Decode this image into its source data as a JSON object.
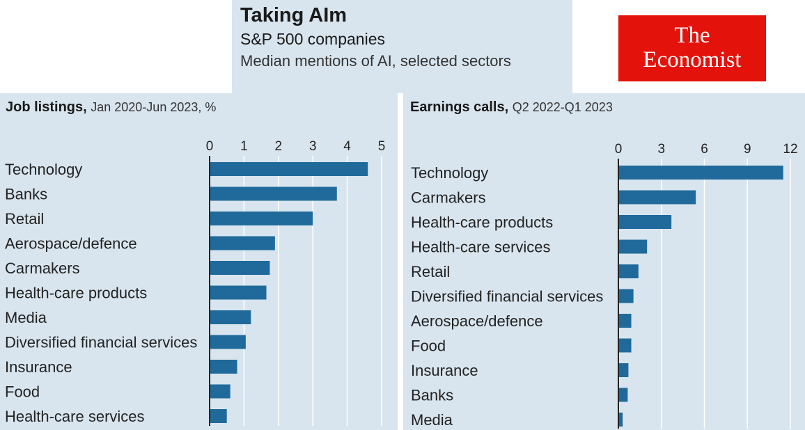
{
  "header": {
    "title": "Taking AIm",
    "subtitle": "S&P 500 companies",
    "description": "Median mentions of AI, selected sectors"
  },
  "logo": {
    "line1": "The",
    "line2": "Economist",
    "color": "#e3120b"
  },
  "colors": {
    "bar": "#1f6a9a",
    "panel_bg": "#d9e5ee",
    "grid": "#ffffff"
  },
  "chart_data": [
    {
      "type": "bar",
      "orientation": "horizontal",
      "title": "Job listings,",
      "subtitle": "Jan 2020-Jun 2023, %",
      "categories": [
        "Technology",
        "Banks",
        "Retail",
        "Aerospace/defence",
        "Carmakers",
        "Health-care products",
        "Media",
        "Diversified financial services",
        "Insurance",
        "Food",
        "Health-care services"
      ],
      "values": [
        4.6,
        3.7,
        3.0,
        1.9,
        1.75,
        1.65,
        1.2,
        1.05,
        0.8,
        0.6,
        0.5
      ],
      "xlim": [
        0,
        5
      ],
      "xticks": [
        0,
        1,
        2,
        3,
        4,
        5
      ],
      "grid": true
    },
    {
      "type": "bar",
      "orientation": "horizontal",
      "title": "Earnings calls,",
      "subtitle": "Q2 2022-Q1 2023",
      "categories": [
        "Technology",
        "Carmakers",
        "Health-care products",
        "Health-care services",
        "Retail",
        "Diversified financial services",
        "Aerospace/defence",
        "Food",
        "Insurance",
        "Banks",
        "Media"
      ],
      "values": [
        11.5,
        5.4,
        3.7,
        2.0,
        1.4,
        1.05,
        0.9,
        0.9,
        0.7,
        0.65,
        0.3
      ],
      "xlim": [
        0,
        12
      ],
      "xticks": [
        0,
        3,
        6,
        9,
        12
      ],
      "grid": true
    }
  ]
}
